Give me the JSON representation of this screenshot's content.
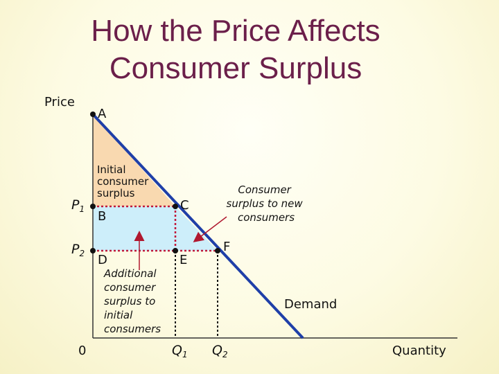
{
  "title": "How the Price Affects Consumer Surplus",
  "title_lines": [
    "How the Price Affects",
    "Consumer Surplus"
  ],
  "axes": {
    "y_label": "Price",
    "x_label": "Quantity",
    "origin": "0"
  },
  "price_labels": [
    {
      "main": "P",
      "sub": "1"
    },
    {
      "main": "P",
      "sub": "2"
    }
  ],
  "quantity_labels": [
    {
      "main": "Q",
      "sub": "1"
    },
    {
      "main": "Q",
      "sub": "2"
    }
  ],
  "points": [
    "A",
    "B",
    "C",
    "D",
    "E",
    "F"
  ],
  "demand_label": "Demand",
  "annotations": {
    "initial": [
      "Initial",
      "consumer",
      "surplus"
    ],
    "additional": [
      "Additional",
      "consumer",
      "surplus to",
      "initial",
      "consumers"
    ],
    "new": [
      "Consumer",
      "surplus to new",
      "consumers"
    ]
  },
  "colors": {
    "title": "#6b1f4a",
    "demand": "#1f3fa8",
    "initial_surplus": "#f9d9b0",
    "added_surplus": "#cdeefa",
    "guide_red": "#c0183a",
    "arrow": "#b0182f"
  }
}
